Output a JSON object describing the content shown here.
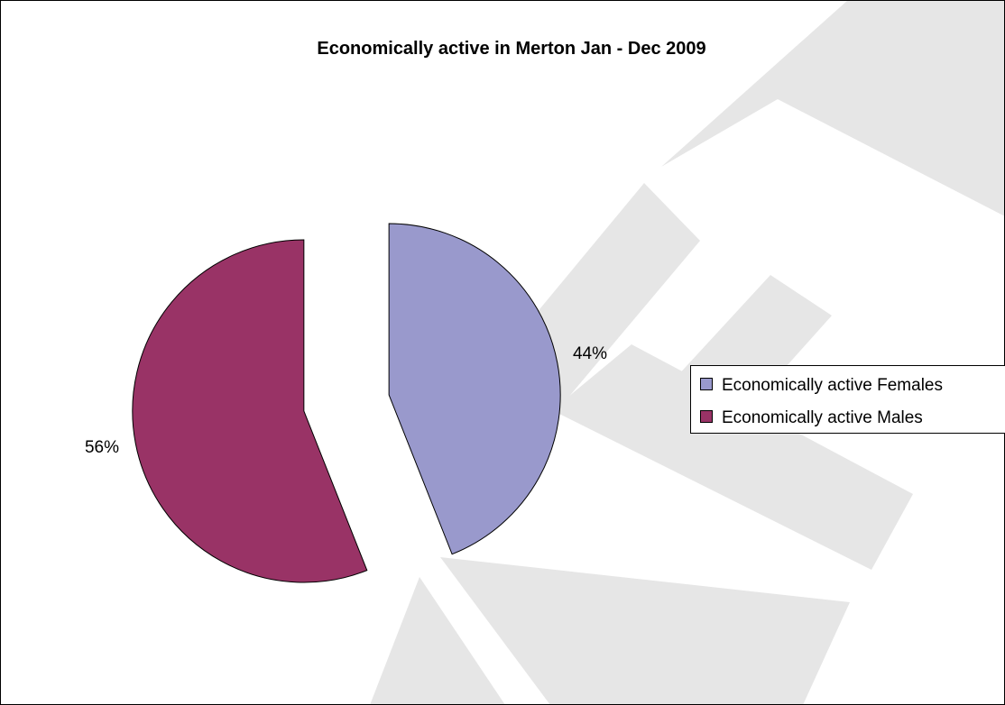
{
  "chart_data": {
    "type": "pie",
    "title": "Economically active in Merton Jan - Dec 2009",
    "slices": [
      {
        "name": "Economically active Females",
        "value": 44,
        "label": "44%",
        "color": "#9999cc"
      },
      {
        "name": "Economically active Males",
        "value": 56,
        "label": "56%",
        "color": "#993366"
      }
    ],
    "legend": {
      "placement": "right",
      "entries": [
        "Economically active Females",
        "Economically active Males"
      ]
    },
    "exploded": true
  },
  "watermark": {
    "text": "DRAFT",
    "color": "#e6e6e6"
  }
}
